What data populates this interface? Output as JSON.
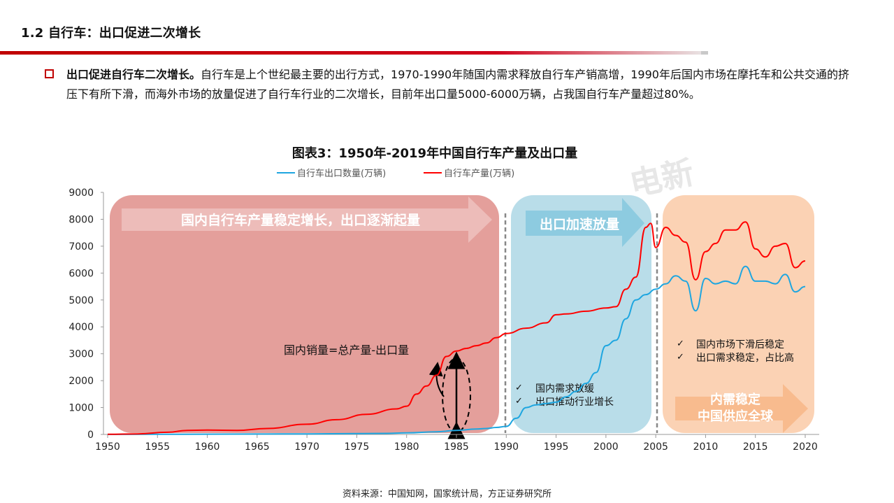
{
  "header": {
    "title": "1.2 自行车：出口促进二次增长"
  },
  "intro": {
    "bold": "出口促进自行车二次增长。",
    "text": "自行车是上个世纪最主要的出行方式，1970-1990年随国内需求释放自行车产销高增，1990年后国内市场在摩托车和公共交通的挤压下有所下滑，而海外市场的放量促进了自行车行业的二次增长，目前年出口量5000-6000万辆，占我国自行车产量超过80%。"
  },
  "watermark": "电新",
  "colors": {
    "production": "#ff0000",
    "export": "#1ea6e0",
    "phase1": "#e39a96",
    "phase2": "#b5dbe8",
    "phase3": "#fbd0b0"
  },
  "chart_data": {
    "type": "line",
    "title": "图表3：1950年-2019年中国自行车产量及出口量",
    "ylim": [
      0,
      9000
    ],
    "xlim": [
      1950,
      2020
    ],
    "yticks": [
      0,
      1000,
      2000,
      3000,
      4000,
      5000,
      6000,
      7000,
      8000,
      9000
    ],
    "xticks": [
      1950,
      1955,
      1960,
      1965,
      1970,
      1975,
      1980,
      1985,
      1990,
      1995,
      2000,
      2005,
      2010,
      2015,
      2020
    ],
    "legend_position": "top",
    "series": [
      {
        "name": "自行车出口数量(万辆)",
        "color": "#1ea6e0",
        "x": [
          1950,
          1955,
          1960,
          1965,
          1970,
          1975,
          1978,
          1980,
          1983,
          1985,
          1987,
          1988,
          1989,
          1990,
          1991,
          1992,
          1993,
          1994,
          1995,
          1996,
          1997,
          1998,
          1999,
          2000,
          2001,
          2002,
          2003,
          2004,
          2005,
          2006,
          2007,
          2008,
          2009,
          2010,
          2011,
          2012,
          2013,
          2014,
          2015,
          2016,
          2017,
          2018,
          2019,
          2020
        ],
        "y": [
          0,
          5,
          10,
          15,
          20,
          30,
          40,
          60,
          100,
          150,
          200,
          220,
          260,
          300,
          600,
          1000,
          1100,
          1150,
          1200,
          1400,
          1600,
          1900,
          2300,
          3300,
          3500,
          4300,
          5000,
          5200,
          5400,
          5600,
          5900,
          5700,
          4600,
          5800,
          5600,
          5700,
          5600,
          6250,
          5700,
          5700,
          5600,
          5950,
          5300,
          5500
        ]
      },
      {
        "name": "自行车产量(万辆)",
        "color": "#ff0000",
        "x": [
          1950,
          1953,
          1956,
          1958,
          1960,
          1963,
          1966,
          1970,
          1973,
          1976,
          1979,
          1980,
          1981,
          1982,
          1983,
          1984,
          1985,
          1986,
          1987,
          1988,
          1989,
          1990,
          1992,
          1994,
          1995,
          1996,
          1998,
          2000,
          2001,
          2002,
          2003,
          2004,
          2004.5,
          2005,
          2006,
          2007,
          2008,
          2009,
          2010,
          2011,
          2012,
          2013,
          2014,
          2015,
          2016,
          2017,
          2018,
          2019,
          2020
        ],
        "y": [
          5,
          20,
          80,
          150,
          160,
          150,
          220,
          380,
          550,
          750,
          950,
          1050,
          1500,
          1800,
          2200,
          2900,
          3100,
          3200,
          3300,
          3400,
          3600,
          3750,
          3950,
          4150,
          4450,
          4480,
          4580,
          4700,
          4750,
          5400,
          5850,
          7700,
          7850,
          6950,
          7700,
          7400,
          7150,
          5750,
          6800,
          7100,
          7600,
          7600,
          7900,
          6900,
          6600,
          7000,
          7100,
          6200,
          6450
        ]
      }
    ],
    "phases": [
      {
        "label": "国内自行车产量稳定增长，出口逐渐起量"
      },
      {
        "label": "出口加速放量",
        "notes": [
          "国内需求放缓",
          "出口推动行业增长"
        ]
      },
      {
        "label": "内需稳定\n中国供应全球",
        "notes": [
          "国内市场下滑后稳定",
          "出口需求稳定，占比高"
        ]
      }
    ],
    "annotation": "国内销量=总产量-出口量"
  },
  "source": "资料来源：中国知网，国家统计局，方正证券研究所"
}
